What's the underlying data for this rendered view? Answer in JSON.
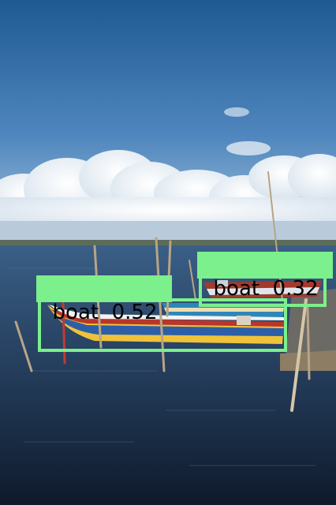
{
  "scene": {
    "description_name": "lagoon-with-moored-boats",
    "colors": {
      "sky_top": "#1f5a93",
      "sky_mid": "#4f86bd",
      "sky_low": "#a9c7de",
      "water_top": "#3a5f86",
      "water_bottom": "#0e1a2b",
      "detection": "#7CF08C"
    }
  },
  "detections": [
    {
      "class_label": "boat",
      "score": "0.52"
    },
    {
      "class_label": "boat",
      "score": "0.32"
    }
  ]
}
